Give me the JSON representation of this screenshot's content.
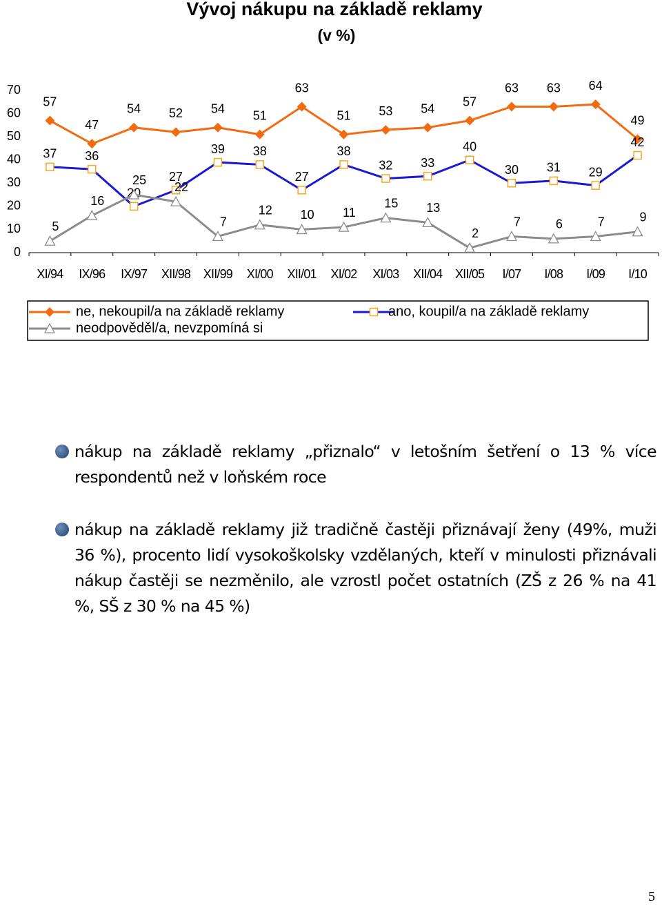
{
  "chart_data": {
    "type": "line",
    "title": "Vývoj nákupu na základě reklamy",
    "subtitle": "(v %)",
    "categories": [
      "XI/94",
      "IX/96",
      "IX/97",
      "XII/98",
      "XII/99",
      "XI/00",
      "XII/01",
      "XI/02",
      "XI/03",
      "XII/04",
      "XII/05",
      "I/07",
      "I/08",
      "I/09",
      "I/10"
    ],
    "series": [
      {
        "name": "ne, nekoupil/a na základě reklamy",
        "color": "#f26b10",
        "marker": "diamond",
        "values": [
          57,
          47,
          54,
          52,
          54,
          51,
          63,
          51,
          53,
          54,
          57,
          63,
          63,
          64,
          49
        ]
      },
      {
        "name": "ano, koupil/a na základě reklamy",
        "color": "#1a1ad0",
        "marker": "square",
        "values": [
          37,
          36,
          20,
          27,
          39,
          38,
          27,
          38,
          32,
          33,
          40,
          30,
          31,
          29,
          42
        ]
      },
      {
        "name": "neodpověděl/a, nevzpomíná si",
        "color": "#8c8c8c",
        "marker": "triangle",
        "values": [
          5,
          16,
          25,
          22,
          7,
          12,
          10,
          11,
          15,
          13,
          2,
          7,
          6,
          7,
          9
        ]
      }
    ],
    "ylim": [
      0,
      70
    ],
    "yticks": [
      0,
      10,
      20,
      30,
      40,
      50,
      60,
      70
    ],
    "grid": false
  },
  "bullets": [
    "nákup na základě reklamy „přiznalo“ v letošním šetření o 13 % více respondentů než v loňském roce",
    "nákup na základě reklamy již tradičně častěji přiznávají ženy (49%, muži 36 %), procento lidí vysokoškolsky vzdělaných, kteří v minulosti přiznávali nákup častěji se nezměnilo, ale vzrostl počet ostatních (ZŠ z 26 % na 41 %, SŠ z 30 % na 45 %)"
  ],
  "page_number": "5"
}
